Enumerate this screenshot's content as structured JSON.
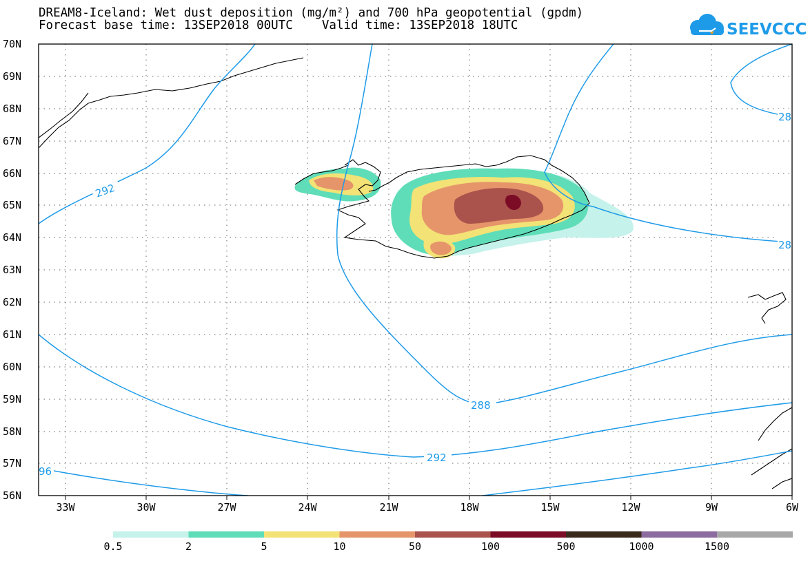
{
  "title": {
    "line1": "DREAM8-Iceland: Wet dust deposition (mg/m²) and 700 hPa geopotential (gpdm)",
    "line2": "Forecast base time: 13SEP2018 00UTC    Valid time: 13SEP2018 18UTC"
  },
  "logo": {
    "text": "SEEVCCC",
    "color": "#1e9be8"
  },
  "map": {
    "lat_labels": [
      "70N",
      "69N",
      "68N",
      "67N",
      "66N",
      "65N",
      "64N",
      "63N",
      "62N",
      "61N",
      "60N",
      "59N",
      "58N",
      "57N",
      "56N"
    ],
    "lon_labels": [
      "33W",
      "30W",
      "27W",
      "24W",
      "21W",
      "18W",
      "15W",
      "12W",
      "9W",
      "6W"
    ],
    "lat_range": [
      56,
      70
    ],
    "lon_range": [
      -34,
      -6
    ],
    "grid": "dotted",
    "coastline_color": "#000000",
    "contour_color": "#1e9be8",
    "contour_labels": [
      "292",
      "288",
      "292",
      "28",
      "28",
      "96"
    ]
  },
  "legend": {
    "colors": [
      "#c5f2ea",
      "#5fddb8",
      "#f3e275",
      "#e6956b",
      "#a9534c",
      "#7c0c26",
      "#3a2a1c",
      "#8c6c9e",
      "#a8a8a8"
    ],
    "labels": [
      "0.5",
      "2",
      "5",
      "10",
      "50",
      "100",
      "500",
      "1000",
      "1500"
    ]
  }
}
